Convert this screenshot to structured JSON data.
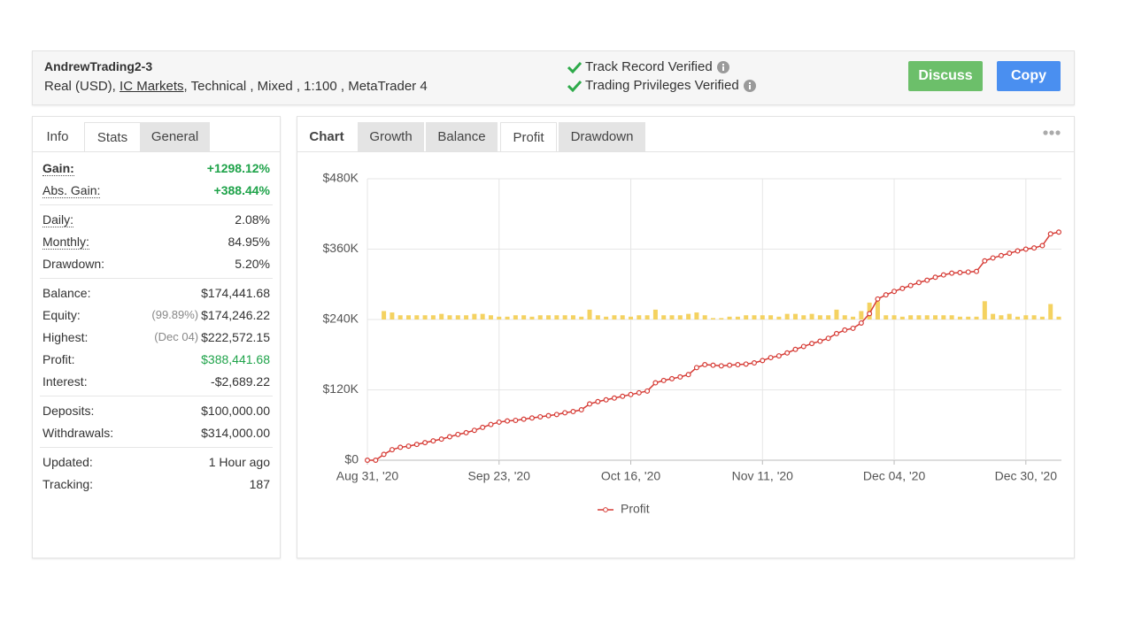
{
  "header": {
    "title": "AndrewTrading2-3",
    "account": "Real (USD),",
    "broker": "IC Markets",
    "details": ", Technical , Mixed , 1:100 , MetaTrader 4",
    "verifications": [
      "Track Record Verified",
      "Trading Privileges Verified"
    ],
    "buttons": [
      "Discuss",
      "Copy"
    ]
  },
  "left_tabs": [
    "Info",
    "Stats",
    "General"
  ],
  "stats": [
    [
      {
        "label": "Gain:",
        "value": "+1298.12%"
      },
      {
        "label": "Abs. Gain:",
        "value": "+388.44%"
      }
    ],
    [
      {
        "label": "Daily:",
        "value": "2.08%"
      },
      {
        "label": "Monthly:",
        "value": "84.95%"
      },
      {
        "label": "Drawdown:",
        "value": "5.20%"
      }
    ],
    [
      {
        "label": "Balance:",
        "value": "$174,441.68"
      },
      {
        "label": "Equity:",
        "note": "(99.89%)",
        "value": "$174,246.22"
      },
      {
        "label": "Highest:",
        "note": "(Dec 04)",
        "value": "$222,572.15"
      },
      {
        "label": "Profit:",
        "value": "$388,441.68"
      },
      {
        "label": "Interest:",
        "value": "-$2,689.22"
      }
    ],
    [
      {
        "label": "Deposits:",
        "value": "$100,000.00"
      },
      {
        "label": "Withdrawals:",
        "value": "$314,000.00"
      }
    ],
    [
      {
        "label": "Updated:",
        "value": "1 Hour ago"
      },
      {
        "label": "Tracking:",
        "value": "187"
      }
    ]
  ],
  "chart_tabs": [
    "Chart",
    "Growth",
    "Balance",
    "Profit",
    "Drawdown"
  ],
  "chart_data": {
    "type": "line",
    "categories": [
      "Aug 31, '20",
      null,
      null,
      null,
      null,
      null,
      null,
      null,
      null,
      null,
      null,
      null,
      null,
      null,
      null,
      null,
      "Sep 23, '20",
      null,
      null,
      null,
      null,
      null,
      null,
      null,
      null,
      null,
      null,
      null,
      null,
      null,
      null,
      null,
      "Oct 16, '20",
      null,
      null,
      null,
      null,
      null,
      null,
      null,
      null,
      null,
      null,
      null,
      null,
      null,
      null,
      null,
      "Nov 11, '20",
      null,
      null,
      null,
      null,
      null,
      null,
      null,
      null,
      null,
      null,
      null,
      null,
      null,
      null,
      null,
      "Dec 04, '20",
      null,
      null,
      null,
      null,
      null,
      null,
      null,
      null,
      null,
      null,
      null,
      null,
      null,
      null,
      null,
      "Dec 30, '20",
      null,
      null,
      null,
      null
    ],
    "series": [
      {
        "name": "Profit",
        "color": "#d63b35",
        "values": [
          0,
          0,
          10000,
          18000,
          22000,
          24000,
          27000,
          30000,
          33000,
          36000,
          40000,
          44000,
          47000,
          51000,
          56000,
          61000,
          65000,
          67000,
          68000,
          70000,
          72000,
          74000,
          76000,
          78000,
          81000,
          83000,
          86000,
          96000,
          100000,
          103000,
          106000,
          109000,
          112000,
          115000,
          118000,
          132000,
          136000,
          139000,
          142000,
          146000,
          158000,
          163000,
          162000,
          161000,
          162000,
          163000,
          164000,
          166000,
          170000,
          175000,
          178000,
          183000,
          189000,
          194000,
          199000,
          203000,
          208000,
          216000,
          222000,
          225000,
          234000,
          250000,
          275000,
          282000,
          288000,
          293000,
          298000,
          303000,
          307000,
          312000,
          316000,
          319000,
          320000,
          321000,
          322000,
          340000,
          345000,
          349000,
          353000,
          357000,
          360000,
          362000,
          366000,
          386000,
          389000
        ]
      },
      {
        "type": "bar",
        "axis": "y2",
        "color": "#f4d261",
        "values": [
          0,
          0,
          0.06,
          0.05,
          0.03,
          0.03,
          0.03,
          0.03,
          0.03,
          0.04,
          0.03,
          0.03,
          0.03,
          0.04,
          0.04,
          0.03,
          0.02,
          0.02,
          0.03,
          0.03,
          0.02,
          0.03,
          0.03,
          0.03,
          0.03,
          0.03,
          0.02,
          0.07,
          0.03,
          0.02,
          0.03,
          0.03,
          0.02,
          0.03,
          0.03,
          0.07,
          0.03,
          0.03,
          0.03,
          0.04,
          0.05,
          0.03,
          0.01,
          0.01,
          0.02,
          0.02,
          0.03,
          0.03,
          0.03,
          0.03,
          0.02,
          0.04,
          0.04,
          0.03,
          0.04,
          0.03,
          0.03,
          0.07,
          0.03,
          0.02,
          0.06,
          0.12,
          0.13,
          0.03,
          0.03,
          0.02,
          0.03,
          0.03,
          0.03,
          0.03,
          0.03,
          0.03,
          0.02,
          0.02,
          0.02,
          0.13,
          0.04,
          0.03,
          0.04,
          0.02,
          0.03,
          0.03,
          0.02,
          0.11,
          0.02
        ]
      }
    ],
    "ylim": [
      0,
      480000
    ],
    "yticks": [
      {
        "value": 0,
        "label": "$0"
      },
      {
        "value": 120000,
        "label": "$120K"
      },
      {
        "value": 240000,
        "label": "$240K"
      },
      {
        "value": 360000,
        "label": "$360K"
      },
      {
        "value": 480000,
        "label": "$480K"
      }
    ],
    "y2lim": [
      -1,
      1
    ],
    "grid": true,
    "legend": "bottom"
  }
}
